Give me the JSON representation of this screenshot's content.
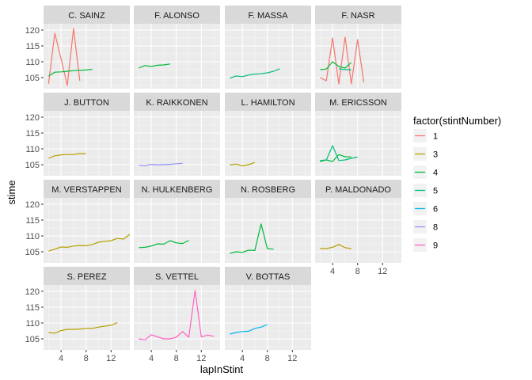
{
  "chart_data": {
    "type": "line",
    "facet": "driver",
    "xlabel": "lapInStint",
    "ylabel": "stime",
    "xlim": [
      1.2,
      15
    ],
    "ylim": [
      101.5,
      122
    ],
    "x_ticks": [
      4,
      8,
      12
    ],
    "y_ticks": [
      105,
      110,
      115,
      120
    ],
    "grid": true,
    "legend_position": "right",
    "legend": {
      "title": "factor(stintNumber)",
      "entries": [
        {
          "label": "1",
          "color": "#F8766D"
        },
        {
          "label": "3",
          "color": "#B79F00"
        },
        {
          "label": "4",
          "color": "#00BA38"
        },
        {
          "label": "5",
          "color": "#00BF7D"
        },
        {
          "label": "6",
          "color": "#00B4EF"
        },
        {
          "label": "8",
          "color": "#9590FF"
        },
        {
          "label": "9",
          "color": "#FF61C3"
        }
      ]
    },
    "panels": [
      {
        "label": "C. SAINZ",
        "series": [
          {
            "stint": "1",
            "x": [
              2,
              3,
              4,
              5,
              6,
              7,
              8
            ],
            "y": [
              103,
              119,
              111,
              102.5,
              120.5,
              104,
              null
            ]
          },
          {
            "stint": "4",
            "x": [
              2,
              3,
              4,
              5,
              6,
              7,
              8,
              9
            ],
            "y": [
              105.5,
              106.7,
              106.8,
              107,
              107.2,
              107.3,
              107.4,
              107.6
            ]
          }
        ]
      },
      {
        "label": "F. ALONSO",
        "series": [
          {
            "stint": "4",
            "x": [
              2,
              3,
              4,
              5,
              6,
              7
            ],
            "y": [
              108,
              108.8,
              108.5,
              108.9,
              109,
              109.3
            ]
          }
        ]
      },
      {
        "label": "F. MASSA",
        "series": [
          {
            "stint": "5",
            "x": [
              2,
              3,
              4,
              5,
              6,
              7,
              8,
              9,
              10
            ],
            "y": [
              104.8,
              105.5,
              105.3,
              105.8,
              106.1,
              106.2,
              106.5,
              107,
              107.8
            ]
          }
        ]
      },
      {
        "label": "F. NASR",
        "series": [
          {
            "stint": "1",
            "x": [
              2,
              3,
              4,
              5,
              6,
              7,
              8,
              9,
              10
            ],
            "y": [
              105,
              104,
              117.5,
              103,
              117.8,
              103,
              117,
              103.5,
              null
            ]
          },
          {
            "stint": "4",
            "x": [
              2,
              3,
              4,
              5,
              6,
              7
            ],
            "y": [
              107.5,
              107.7,
              110,
              108.5,
              108,
              109.8
            ]
          },
          {
            "stint": "5",
            "x": [
              5,
              6,
              7
            ],
            "y": [
              107.8,
              107.5,
              107.5
            ]
          }
        ]
      },
      {
        "label": "J. BUTTON",
        "series": [
          {
            "stint": "3",
            "x": [
              2,
              3,
              4,
              5,
              6,
              7,
              8
            ],
            "y": [
              107,
              107.8,
              108.1,
              108.2,
              108.2,
              108.5,
              108.5
            ]
          }
        ]
      },
      {
        "label": "K. RAIKKONEN",
        "series": [
          {
            "stint": "8",
            "x": [
              2,
              3,
              4,
              5,
              6,
              7,
              8,
              9
            ],
            "y": [
              104.8,
              104.6,
              105.1,
              104.9,
              105,
              105.1,
              105.3,
              105.4
            ]
          }
        ]
      },
      {
        "label": "L. HAMILTON",
        "series": [
          {
            "stint": "3",
            "x": [
              2,
              3,
              4,
              5,
              6
            ],
            "y": [
              104.9,
              105.2,
              104.6,
              105,
              105.7
            ]
          }
        ]
      },
      {
        "label": "M. ERICSSON",
        "series": [
          {
            "stint": "4",
            "x": [
              2,
              3,
              4,
              5,
              6,
              7
            ],
            "y": [
              106,
              106.5,
              106,
              108.2,
              107.5,
              107.4
            ]
          },
          {
            "stint": "5",
            "x": [
              2,
              3,
              4,
              5,
              6,
              7,
              8
            ],
            "y": [
              106.3,
              106.5,
              111,
              106.3,
              106.5,
              107,
              107.4
            ]
          }
        ]
      },
      {
        "label": "M. VERSTAPPEN",
        "series": [
          {
            "stint": "3",
            "x": [
              2,
              3,
              4,
              5,
              6,
              7,
              8,
              9,
              10,
              11,
              12,
              13,
              14,
              15
            ],
            "y": [
              105.2,
              105.8,
              106.5,
              106.4,
              106.8,
              107,
              106.9,
              107.3,
              108,
              108.3,
              108.5,
              109.2,
              109,
              110.5
            ]
          }
        ]
      },
      {
        "label": "N. HULKENBERG",
        "series": [
          {
            "stint": "4",
            "x": [
              2,
              3,
              4,
              5,
              6,
              7,
              8,
              9,
              10
            ],
            "y": [
              106.3,
              106.4,
              106.8,
              107.5,
              107.4,
              108.5,
              107.8,
              107.6,
              108.6
            ]
          }
        ]
      },
      {
        "label": "N. ROSBERG",
        "series": [
          {
            "stint": "4",
            "x": [
              2,
              3,
              4,
              5,
              6,
              7,
              8,
              9
            ],
            "y": [
              104.5,
              105,
              104.8,
              105.5,
              105.4,
              113.8,
              106,
              105.8
            ]
          }
        ]
      },
      {
        "label": "P. MALDONADO",
        "series": [
          {
            "stint": "3",
            "x": [
              2,
              3,
              4,
              5,
              6,
              7
            ],
            "y": [
              106,
              106,
              106.4,
              107.3,
              106.3,
              106
            ]
          }
        ]
      },
      {
        "label": "S. PEREZ",
        "series": [
          {
            "stint": "3",
            "x": [
              2,
              3,
              4,
              5,
              6,
              7,
              8,
              9,
              10,
              11,
              12,
              13
            ],
            "y": [
              107,
              106.8,
              107.6,
              108,
              108,
              108.1,
              108.3,
              108.3,
              108.7,
              109,
              109.3,
              110.1
            ]
          }
        ]
      },
      {
        "label": "S. VETTEL",
        "series": [
          {
            "stint": "9",
            "x": [
              2,
              3,
              4,
              5,
              6,
              7,
              8,
              9,
              10,
              11,
              12,
              13,
              14
            ],
            "y": [
              105,
              104.7,
              106.3,
              105.6,
              105,
              105,
              105.5,
              107.3,
              105.5,
              120.3,
              105.6,
              106.2,
              105.8
            ]
          }
        ]
      },
      {
        "label": "V. BOTTAS",
        "series": [
          {
            "stint": "6",
            "x": [
              2,
              3,
              4,
              5,
              6,
              7,
              8
            ],
            "y": [
              106.5,
              107,
              107.3,
              107.4,
              108.3,
              108.7,
              109.5
            ]
          }
        ]
      }
    ]
  }
}
